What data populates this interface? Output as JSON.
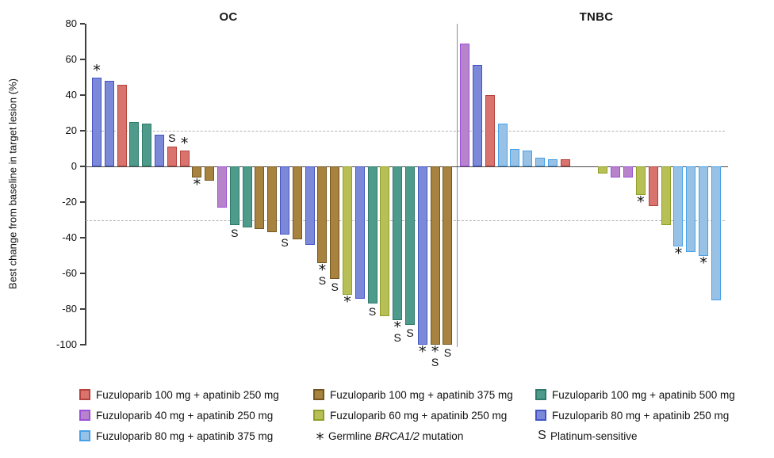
{
  "chart_data": {
    "type": "bar",
    "title": "",
    "ylabel": "Best change from baseline in target lesion (%)",
    "ylim": [
      -100,
      80
    ],
    "yticks": [
      80,
      60,
      40,
      20,
      0,
      -20,
      -40,
      -60,
      -80,
      -100
    ],
    "reference_lines": [
      20,
      -30
    ],
    "grid": "dashed reference lines at +20 and -30 only",
    "legend_position": "bottom",
    "groups": {
      "f100a250": {
        "label": "Fuzuloparib 100 mg + apatinib 250 mg",
        "fill": "#D9736E",
        "border": "#B5423D"
      },
      "f100a375": {
        "label": "Fuzuloparib 100 mg + apatinib 375 mg",
        "fill": "#A8823F",
        "border": "#73571F"
      },
      "f100a500": {
        "label": "Fuzuloparib 100 mg + apatinib 500 mg",
        "fill": "#4F9B8B",
        "border": "#2E7A6B"
      },
      "f40a250": {
        "label": "Fuzuloparib 40 mg + apatinib 250 mg",
        "fill": "#B783CA",
        "border": "#9C4FD9"
      },
      "f60a250": {
        "label": "Fuzuloparib 60 mg + apatinib 250 mg",
        "fill": "#B9BF57",
        "border": "#8FA028"
      },
      "f80a250": {
        "label": "Fuzuloparib 80 mg + apatinib 250 mg",
        "fill": "#7C89D8",
        "border": "#4254C5"
      },
      "f80a375": {
        "label": "Fuzuloparib 80 mg + apatinib 375 mg",
        "fill": "#98C2E5",
        "border": "#46A0E8"
      }
    },
    "flag_meaning": {
      "*": "Germline BRCA1/2 mutation",
      "S": "Platinum-sensitive"
    },
    "panels": [
      {
        "title": "OC",
        "bars": [
          {
            "group": "f80a250",
            "value": 50,
            "flags": "*"
          },
          {
            "group": "f80a250",
            "value": 48,
            "flags": ""
          },
          {
            "group": "f100a250",
            "value": 46,
            "flags": ""
          },
          {
            "group": "f100a500",
            "value": 25,
            "flags": ""
          },
          {
            "group": "f100a500",
            "value": 24,
            "flags": ""
          },
          {
            "group": "f80a250",
            "value": 18,
            "flags": ""
          },
          {
            "group": "f100a250",
            "value": 11,
            "flags": "S"
          },
          {
            "group": "f100a250",
            "value": 9,
            "flags": "*"
          },
          {
            "group": "f100a375",
            "value": -6,
            "flags": "*"
          },
          {
            "group": "f100a375",
            "value": -8,
            "flags": ""
          },
          {
            "group": "f40a250",
            "value": -23,
            "flags": ""
          },
          {
            "group": "f100a500",
            "value": -33,
            "flags": "S"
          },
          {
            "group": "f100a500",
            "value": -34,
            "flags": ""
          },
          {
            "group": "f100a375",
            "value": -35,
            "flags": ""
          },
          {
            "group": "f100a375",
            "value": -37,
            "flags": ""
          },
          {
            "group": "f80a250",
            "value": -38,
            "flags": "S"
          },
          {
            "group": "f100a375",
            "value": -41,
            "flags": ""
          },
          {
            "group": "f80a250",
            "value": -44,
            "flags": ""
          },
          {
            "group": "f100a375",
            "value": -54,
            "flags": "*S"
          },
          {
            "group": "f100a375",
            "value": -63,
            "flags": "S"
          },
          {
            "group": "f60a250",
            "value": -72,
            "flags": "*"
          },
          {
            "group": "f80a250",
            "value": -74,
            "flags": ""
          },
          {
            "group": "f100a500",
            "value": -77,
            "flags": "S"
          },
          {
            "group": "f60a250",
            "value": -84,
            "flags": ""
          },
          {
            "group": "f100a500",
            "value": -86,
            "flags": "*S"
          },
          {
            "group": "f100a500",
            "value": -89,
            "flags": "S"
          },
          {
            "group": "f80a250",
            "value": -100,
            "flags": "*"
          },
          {
            "group": "f100a375",
            "value": -100,
            "flags": "*S"
          },
          {
            "group": "f100a375",
            "value": -100,
            "flags": "S"
          }
        ]
      },
      {
        "title": "TNBC",
        "bars": [
          {
            "group": "f40a250",
            "value": 69,
            "flags": ""
          },
          {
            "group": "f80a250",
            "value": 57,
            "flags": ""
          },
          {
            "group": "f100a250",
            "value": 40,
            "flags": ""
          },
          {
            "group": "f80a375",
            "value": 24,
            "flags": ""
          },
          {
            "group": "f80a375",
            "value": 10,
            "flags": ""
          },
          {
            "group": "f80a375",
            "value": 9,
            "flags": ""
          },
          {
            "group": "f80a375",
            "value": 5,
            "flags": ""
          },
          {
            "group": "f80a375",
            "value": 4,
            "flags": ""
          },
          {
            "group": "f100a250",
            "value": 4,
            "flags": ""
          },
          {
            "group": "",
            "value": 0,
            "flags": ""
          },
          {
            "group": "",
            "value": 0,
            "flags": ""
          },
          {
            "group": "f60a250",
            "value": -4,
            "flags": ""
          },
          {
            "group": "f40a250",
            "value": -6,
            "flags": ""
          },
          {
            "group": "f40a250",
            "value": -6,
            "flags": ""
          },
          {
            "group": "f60a250",
            "value": -16,
            "flags": "*"
          },
          {
            "group": "f100a250",
            "value": -22,
            "flags": ""
          },
          {
            "group": "f60a250",
            "value": -33,
            "flags": ""
          },
          {
            "group": "f80a375",
            "value": -45,
            "flags": "*"
          },
          {
            "group": "f80a375",
            "value": -48,
            "flags": ""
          },
          {
            "group": "f80a375",
            "value": -50,
            "flags": "*"
          },
          {
            "group": "f80a375",
            "value": -75,
            "flags": ""
          }
        ]
      }
    ]
  },
  "legend": {
    "items": [
      {
        "kind": "swatch",
        "group": "f100a250",
        "label": "Fuzuloparib 100 mg + apatinib 250 mg"
      },
      {
        "kind": "swatch",
        "group": "f100a375",
        "label": "Fuzuloparib 100 mg + apatinib 375 mg"
      },
      {
        "kind": "swatch",
        "group": "f100a500",
        "label": "Fuzuloparib 100 mg + apatinib 500 mg"
      },
      {
        "kind": "swatch",
        "group": "f40a250",
        "label": "Fuzuloparib 40 mg + apatinib 250 mg"
      },
      {
        "kind": "swatch",
        "group": "f60a250",
        "label": "Fuzuloparib 60 mg + apatinib 250 mg"
      },
      {
        "kind": "swatch",
        "group": "f80a250",
        "label": "Fuzuloparib 80 mg + apatinib 250 mg"
      },
      {
        "kind": "swatch",
        "group": "f80a375",
        "label": "Fuzuloparib 80 mg + apatinib 375 mg"
      },
      {
        "kind": "symbol",
        "symbol": "*",
        "label_prefix": "Germline ",
        "label_italic": "BRCA1/2",
        "label_suffix": " mutation"
      },
      {
        "kind": "symbol",
        "symbol": "S",
        "label": "Platinum-sensitive"
      }
    ]
  }
}
